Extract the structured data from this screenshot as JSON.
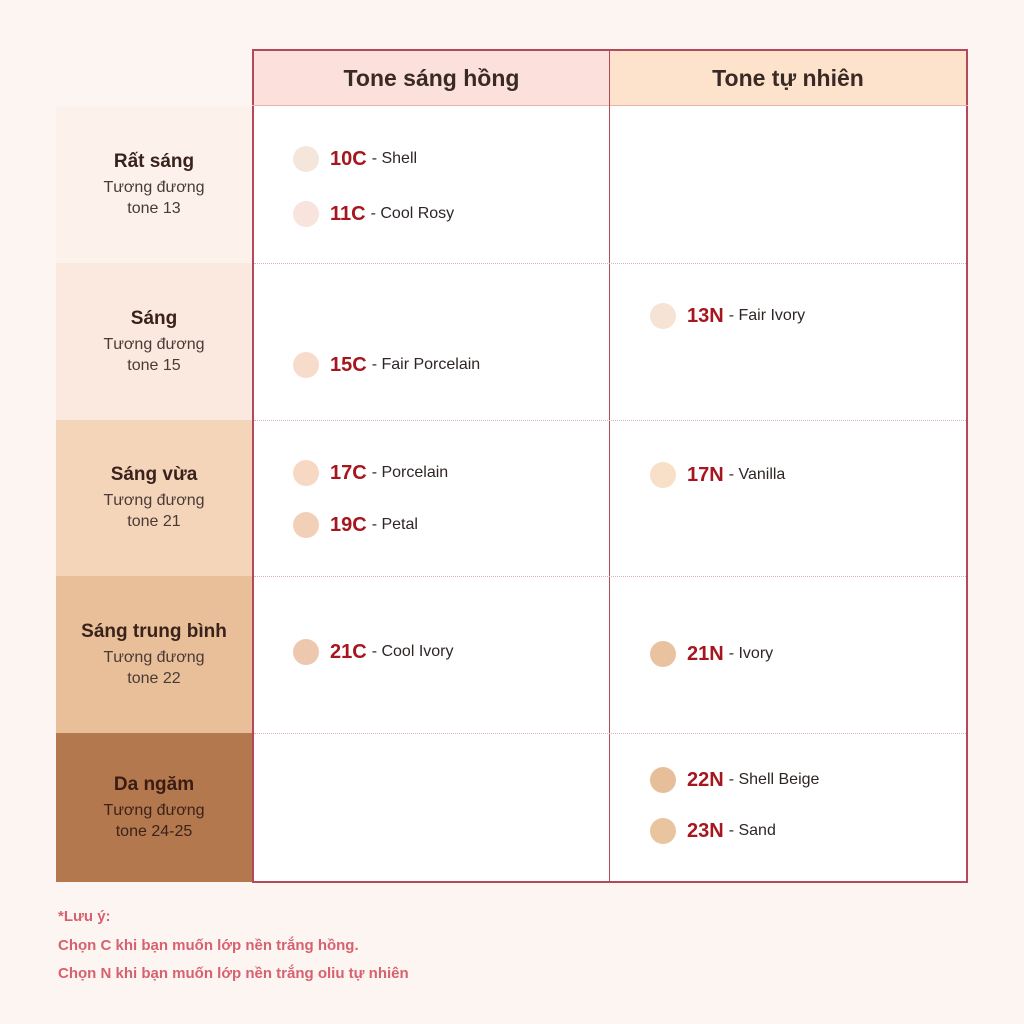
{
  "header": {
    "col_pink": "Tone sáng hồng",
    "col_natural": "Tone tự nhiên"
  },
  "rows": [
    {
      "level": "Rất sáng",
      "equivalent": "Tương đương",
      "tone": "tone 13"
    },
    {
      "level": "Sáng",
      "equivalent": "Tương đương",
      "tone": "tone 15"
    },
    {
      "level": "Sáng vừa",
      "equivalent": "Tương đương",
      "tone": "tone 21"
    },
    {
      "level": "Sáng trung bình",
      "equivalent": "Tương đương",
      "tone": "tone 22"
    },
    {
      "level": "Da ngăm",
      "equivalent": "Tương đương",
      "tone": "tone 24-25"
    }
  ],
  "shades": {
    "s10c": {
      "code": "10C",
      "name": "- Shell",
      "color": "#f4e6da"
    },
    "s11c": {
      "code": "11C",
      "name": "- Cool Rosy",
      "color": "#f9e3dd"
    },
    "s15c": {
      "code": "15C",
      "name": "- Fair Porcelain",
      "color": "#f8dccb"
    },
    "s17c": {
      "code": "17C",
      "name": "- Porcelain",
      "color": "#f7d9c3"
    },
    "s19c": {
      "code": "19C",
      "name": "- Petal",
      "color": "#f2d0b8"
    },
    "s21c": {
      "code": "21C",
      "name": "- Cool Ivory",
      "color": "#edc8ae"
    },
    "s13n": {
      "code": "13N",
      "name": "- Fair Ivory",
      "color": "#f6e3d3"
    },
    "s17n": {
      "code": "17N",
      "name": "- Vanilla",
      "color": "#f8dfc8"
    },
    "s21n": {
      "code": "21N",
      "name": "- Ivory",
      "color": "#e9c39f"
    },
    "s22n": {
      "code": "22N",
      "name": "- Shell Beige",
      "color": "#e6be99"
    },
    "s23n": {
      "code": "23N",
      "name": "- Sand",
      "color": "#eac49f"
    }
  },
  "note": {
    "title": "*Lưu ý:",
    "c": "Chọn C khi bạn muốn lớp nền trắng hồng.",
    "n": "Chọn N khi bạn muốn lớp nền trắng oliu tự nhiên"
  }
}
